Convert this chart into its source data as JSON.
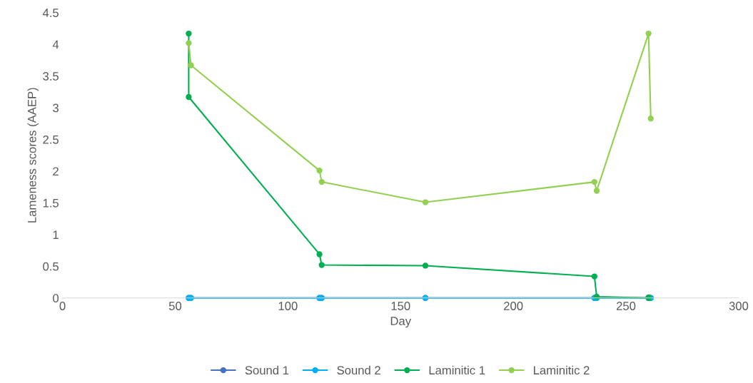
{
  "chart_data": {
    "type": "line",
    "xlabel": "Day",
    "ylabel": "Lameness scores (AAEP)",
    "xlim": [
      0,
      300
    ],
    "xticks": [
      0,
      50,
      100,
      150,
      200,
      250,
      300
    ],
    "ylim": [
      0,
      4.5
    ],
    "yticks": [
      0,
      0.5,
      1,
      1.5,
      2,
      2.5,
      3,
      3.5,
      4,
      4.5
    ],
    "grid": false,
    "legend": "bottom",
    "marker": "circle",
    "line_style": "solid",
    "series": [
      {
        "name": "Sound 1",
        "color": "#4472c4",
        "x": [
          56,
          57,
          114,
          115,
          161,
          236,
          237,
          260,
          261
        ],
        "values": [
          0,
          0,
          0,
          0,
          0,
          0,
          0,
          0,
          0
        ]
      },
      {
        "name": "Sound 2",
        "color": "#00b0f0",
        "x": [
          56,
          57,
          114,
          115,
          161,
          236,
          237,
          260,
          261
        ],
        "values": [
          0,
          0,
          0,
          0,
          0,
          0,
          0,
          0,
          0
        ]
      },
      {
        "name": "Laminitic 1",
        "color": "#00b050",
        "x": [
          56,
          56,
          114,
          115,
          161,
          236,
          237,
          260,
          260
        ],
        "values": [
          4.17,
          3.17,
          0.69,
          0.52,
          0.51,
          0.34,
          0.02,
          0,
          0.01
        ]
      },
      {
        "name": "Laminitic 2",
        "color": "#92d050",
        "x": [
          56,
          57,
          114,
          115,
          161,
          236,
          237,
          260,
          261
        ],
        "values": [
          4.02,
          3.67,
          2.01,
          1.83,
          1.51,
          1.83,
          1.69,
          4.17,
          2.83
        ]
      }
    ]
  }
}
